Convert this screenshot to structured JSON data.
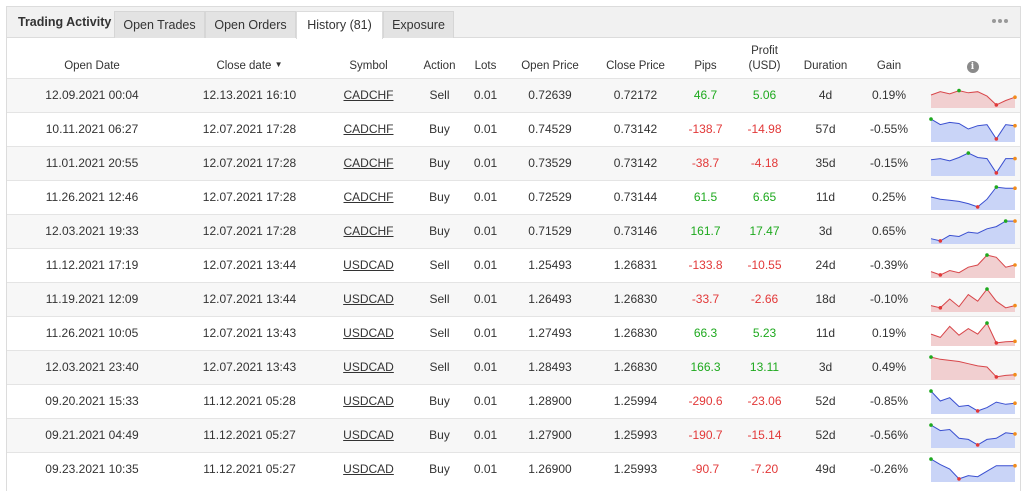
{
  "tabs": {
    "title": "Trading Activity",
    "items": [
      {
        "label": "Open Trades",
        "active": false
      },
      {
        "label": "Open Orders",
        "active": false
      },
      {
        "label": "History (81)",
        "active": true
      },
      {
        "label": "Exposure",
        "active": false
      }
    ]
  },
  "header": {
    "open_date": "Open Date",
    "close_date": "Close date",
    "close_date_sort": "▼",
    "symbol": "Symbol",
    "action": "Action",
    "lots": "Lots",
    "open_price": "Open Price",
    "close_price": "Close Price",
    "pips": "Pips",
    "profit_line1": "Profit",
    "profit_line2": "(USD)",
    "duration": "Duration",
    "gain": "Gain",
    "info_icon": "info-icon"
  },
  "colors": {
    "positive": "#1ea91e",
    "negative": "#e23838",
    "spark_up_line": "#3a4fd0",
    "spark_up_fill": "#c9d4f7",
    "spark_down_line": "#d8464a",
    "spark_down_fill": "#f1cfd0"
  },
  "trades": [
    {
      "open_date": "12.09.2021 00:04",
      "close_date": "12.13.2021 16:10",
      "symbol": "CADCHF",
      "action": "Sell",
      "lots": "0.01",
      "open_price": "0.72639",
      "close_price": "0.72172",
      "pips": "46.7",
      "profit": "5.06",
      "duration": "4d",
      "gain": "0.19%",
      "spark": [
        0.5,
        0.35,
        0.45,
        0.3,
        0.4,
        0.35,
        0.55,
        0.95,
        0.75,
        0.6
      ]
    },
    {
      "open_date": "10.11.2021 06:27",
      "close_date": "12.07.2021 17:28",
      "symbol": "CADCHF",
      "action": "Buy",
      "lots": "0.01",
      "open_price": "0.74529",
      "close_price": "0.73142",
      "pips": "-138.7",
      "profit": "-14.98",
      "duration": "57d",
      "gain": "-0.55%",
      "spark": [
        0.05,
        0.3,
        0.2,
        0.25,
        0.5,
        0.35,
        0.3,
        0.95,
        0.3,
        0.35
      ]
    },
    {
      "open_date": "11.01.2021 20:55",
      "close_date": "12.07.2021 17:28",
      "symbol": "CADCHF",
      "action": "Buy",
      "lots": "0.01",
      "open_price": "0.73529",
      "close_price": "0.73142",
      "pips": "-38.7",
      "profit": "-4.18",
      "duration": "35d",
      "gain": "-0.15%",
      "spark": [
        0.35,
        0.3,
        0.4,
        0.25,
        0.05,
        0.25,
        0.3,
        0.95,
        0.3,
        0.3
      ]
    },
    {
      "open_date": "11.26.2021 12:46",
      "close_date": "12.07.2021 17:28",
      "symbol": "CADCHF",
      "action": "Buy",
      "lots": "0.01",
      "open_price": "0.72529",
      "close_price": "0.73144",
      "pips": "61.5",
      "profit": "6.65",
      "duration": "11d",
      "gain": "0.25%",
      "spark": [
        0.5,
        0.6,
        0.65,
        0.7,
        0.8,
        0.95,
        0.6,
        0.05,
        0.1,
        0.1
      ]
    },
    {
      "open_date": "12.03.2021 19:33",
      "close_date": "12.07.2021 17:28",
      "symbol": "CADCHF",
      "action": "Buy",
      "lots": "0.01",
      "open_price": "0.71529",
      "close_price": "0.73146",
      "pips": "161.7",
      "profit": "17.47",
      "duration": "3d",
      "gain": "0.65%",
      "spark": [
        0.85,
        0.95,
        0.7,
        0.75,
        0.55,
        0.6,
        0.4,
        0.3,
        0.05,
        0.05
      ]
    },
    {
      "open_date": "11.12.2021 17:19",
      "close_date": "12.07.2021 13:44",
      "symbol": "USDCAD",
      "action": "Sell",
      "lots": "0.01",
      "open_price": "1.25493",
      "close_price": "1.26831",
      "pips": "-133.8",
      "profit": "-10.55",
      "duration": "24d",
      "gain": "-0.39%",
      "spark": [
        0.8,
        0.95,
        0.75,
        0.85,
        0.6,
        0.5,
        0.05,
        0.15,
        0.6,
        0.5
      ]
    },
    {
      "open_date": "11.19.2021 12:09",
      "close_date": "12.07.2021 13:44",
      "symbol": "USDCAD",
      "action": "Sell",
      "lots": "0.01",
      "open_price": "1.26493",
      "close_price": "1.26830",
      "pips": "-33.7",
      "profit": "-2.66",
      "duration": "18d",
      "gain": "-0.10%",
      "spark": [
        0.8,
        0.9,
        0.5,
        0.85,
        0.3,
        0.6,
        0.05,
        0.6,
        0.9,
        0.8
      ]
    },
    {
      "open_date": "11.26.2021 10:05",
      "close_date": "12.07.2021 13:43",
      "symbol": "USDCAD",
      "action": "Sell",
      "lots": "0.01",
      "open_price": "1.27493",
      "close_price": "1.26830",
      "pips": "66.3",
      "profit": "5.23",
      "duration": "11d",
      "gain": "0.19%",
      "spark": [
        0.55,
        0.7,
        0.2,
        0.6,
        0.3,
        0.55,
        0.05,
        0.95,
        0.9,
        0.88
      ]
    },
    {
      "open_date": "12.03.2021 23:40",
      "close_date": "12.07.2021 13:43",
      "symbol": "USDCAD",
      "action": "Sell",
      "lots": "0.01",
      "open_price": "1.28493",
      "close_price": "1.26830",
      "pips": "166.3",
      "profit": "13.11",
      "duration": "3d",
      "gain": "0.49%",
      "spark": [
        0.05,
        0.15,
        0.2,
        0.25,
        0.35,
        0.45,
        0.5,
        0.95,
        0.88,
        0.85
      ]
    },
    {
      "open_date": "09.20.2021 15:33",
      "close_date": "11.12.2021 05:28",
      "symbol": "USDCAD",
      "action": "Buy",
      "lots": "0.01",
      "open_price": "1.28900",
      "close_price": "1.25994",
      "pips": "-290.6",
      "profit": "-23.06",
      "duration": "52d",
      "gain": "-0.85%",
      "spark": [
        0.05,
        0.5,
        0.35,
        0.75,
        0.7,
        0.95,
        0.8,
        0.55,
        0.65,
        0.6
      ]
    },
    {
      "open_date": "09.21.2021 04:49",
      "close_date": "11.12.2021 05:27",
      "symbol": "USDCAD",
      "action": "Buy",
      "lots": "0.01",
      "open_price": "1.27900",
      "close_price": "1.25993",
      "pips": "-190.7",
      "profit": "-15.14",
      "duration": "52d",
      "gain": "-0.56%",
      "spark": [
        0.05,
        0.3,
        0.25,
        0.65,
        0.7,
        0.95,
        0.7,
        0.65,
        0.4,
        0.45
      ]
    },
    {
      "open_date": "09.23.2021 10:35",
      "close_date": "11.12.2021 05:27",
      "symbol": "USDCAD",
      "action": "Buy",
      "lots": "0.01",
      "open_price": "1.26900",
      "close_price": "1.25993",
      "pips": "-90.7",
      "profit": "-7.20",
      "duration": "49d",
      "gain": "-0.26%",
      "spark": [
        0.05,
        0.3,
        0.5,
        0.95,
        0.8,
        0.85,
        0.6,
        0.35,
        0.35,
        0.35
      ]
    }
  ]
}
